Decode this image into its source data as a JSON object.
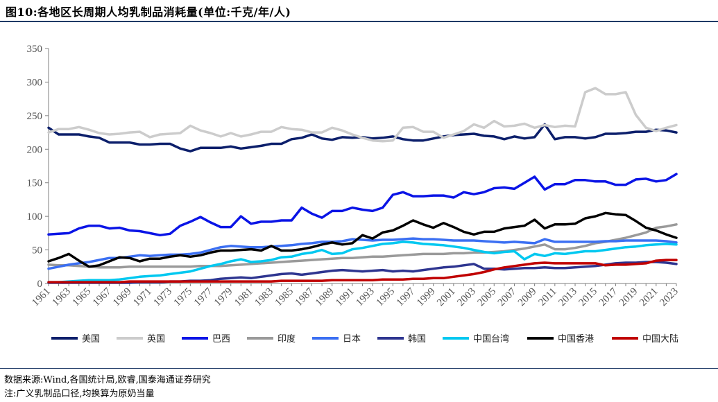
{
  "header": {
    "figure_title": "图10:各地区长周期人均乳制品消耗量(单位:千克/年/人)"
  },
  "footer": {
    "source": "数据来源:Wind,各国统计局,欧睿,国泰海通证券研究",
    "note": "注:广义乳制品口径,均换算为原奶当量"
  },
  "chart_data": {
    "type": "line",
    "x": [
      1961,
      1962,
      1963,
      1964,
      1965,
      1966,
      1967,
      1968,
      1969,
      1970,
      1971,
      1972,
      1973,
      1974,
      1975,
      1976,
      1977,
      1978,
      1979,
      1980,
      1981,
      1982,
      1983,
      1984,
      1985,
      1986,
      1987,
      1988,
      1989,
      1990,
      1991,
      1992,
      1993,
      1994,
      1995,
      1996,
      1997,
      1998,
      1999,
      2000,
      2001,
      2002,
      2003,
      2004,
      2005,
      2006,
      2007,
      2008,
      2009,
      2010,
      2011,
      2012,
      2013,
      2014,
      2015,
      2016,
      2017,
      2018,
      2019,
      2020,
      2021,
      2022,
      2023
    ],
    "x_tick_labels": [
      "1961",
      "1963",
      "1965",
      "1967",
      "1969",
      "1971",
      "1973",
      "1975",
      "1977",
      "1979",
      "1981",
      "1983",
      "1985",
      "1987",
      "1989",
      "1991",
      "1993",
      "1995",
      "1997",
      "1999",
      "2001",
      "2003",
      "2005",
      "2007",
      "2009",
      "2011",
      "2013",
      "2015",
      "2017",
      "2019",
      "2021",
      "2023"
    ],
    "y_ticks": [
      0,
      50,
      100,
      150,
      200,
      250,
      300,
      350
    ],
    "ylim": [
      0,
      350
    ],
    "grid": false,
    "legend_position": "bottom",
    "series": [
      {
        "name": "美国",
        "color": "#0c1f6b",
        "values": [
          232,
          222,
          222,
          222,
          219,
          217,
          210,
          210,
          210,
          207,
          207,
          208,
          208,
          201,
          197,
          202,
          202,
          202,
          204,
          201,
          203,
          205,
          208,
          208,
          215,
          217,
          222,
          216,
          214,
          218,
          217,
          218,
          216,
          217,
          219,
          215,
          213,
          213,
          216,
          219,
          221,
          222,
          223,
          220,
          219,
          215,
          219,
          216,
          218,
          237,
          215,
          218,
          218,
          216,
          218,
          223,
          223,
          224,
          226,
          226,
          229,
          228,
          225
        ]
      },
      {
        "name": "英国",
        "color": "#cccccc",
        "values": [
          225,
          230,
          230,
          233,
          229,
          224,
          222,
          223,
          225,
          226,
          218,
          222,
          223,
          224,
          235,
          228,
          224,
          219,
          224,
          219,
          222,
          226,
          226,
          233,
          230,
          229,
          225,
          225,
          232,
          228,
          222,
          217,
          213,
          212,
          213,
          232,
          233,
          226,
          226,
          217,
          222,
          227,
          237,
          232,
          242,
          234,
          235,
          238,
          232,
          236,
          233,
          235,
          234,
          285,
          291,
          282,
          282,
          285,
          251,
          232,
          227,
          232,
          236
        ]
      },
      {
        "name": "巴西",
        "color": "#0a14e6",
        "values": [
          73,
          74,
          75,
          82,
          86,
          86,
          82,
          83,
          79,
          78,
          75,
          72,
          74,
          86,
          92,
          99,
          91,
          84,
          84,
          100,
          89,
          92,
          92,
          94,
          94,
          113,
          104,
          98,
          108,
          108,
          113,
          110,
          108,
          113,
          132,
          136,
          130,
          130,
          131,
          131,
          128,
          136,
          133,
          136,
          142,
          143,
          141,
          150,
          159,
          140,
          148,
          148,
          154,
          154,
          152,
          152,
          147,
          147,
          155,
          156,
          152,
          154,
          163
        ]
      },
      {
        "name": "印度",
        "color": "#9a9a9a",
        "values": [
          28,
          27,
          27,
          26,
          25,
          24,
          24,
          24,
          25,
          25,
          25,
          25,
          25,
          25,
          25,
          26,
          26,
          26,
          27,
          28,
          29,
          30,
          31,
          32,
          33,
          34,
          35,
          36,
          37,
          38,
          38,
          39,
          40,
          40,
          41,
          42,
          43,
          44,
          44,
          44,
          45,
          45,
          46,
          46,
          47,
          48,
          50,
          52,
          55,
          58,
          51,
          51,
          53,
          56,
          60,
          62,
          65,
          68,
          72,
          76,
          83,
          85,
          88
        ]
      },
      {
        "name": "日本",
        "color": "#3b6ff2",
        "values": [
          22,
          25,
          28,
          30,
          32,
          35,
          38,
          38,
          40,
          42,
          41,
          42,
          43,
          43,
          44,
          46,
          50,
          54,
          56,
          55,
          54,
          54,
          55,
          56,
          57,
          59,
          60,
          62,
          62,
          63,
          66,
          65,
          64,
          65,
          65,
          66,
          67,
          66,
          66,
          65,
          64,
          64,
          64,
          63,
          62,
          61,
          62,
          61,
          60,
          66,
          62,
          62,
          62,
          62,
          62,
          63,
          63,
          64,
          64,
          64,
          64,
          63,
          61
        ]
      },
      {
        "name": "韩国",
        "color": "#2e3590",
        "values": [
          1,
          1,
          1,
          1,
          1,
          1,
          1,
          1,
          1,
          2,
          2,
          2,
          3,
          3,
          4,
          4,
          5,
          7,
          8,
          9,
          8,
          10,
          12,
          14,
          15,
          13,
          15,
          17,
          19,
          20,
          19,
          18,
          19,
          20,
          18,
          19,
          18,
          20,
          22,
          24,
          25,
          27,
          29,
          22,
          22,
          21,
          22,
          23,
          23,
          24,
          23,
          23,
          24,
          25,
          26,
          28,
          30,
          31,
          31,
          32,
          32,
          31,
          29
        ]
      },
      {
        "name": "中国台湾",
        "color": "#00c8f0",
        "values": [
          2,
          2,
          3,
          4,
          5,
          5,
          5,
          6,
          8,
          10,
          11,
          12,
          14,
          16,
          18,
          22,
          26,
          29,
          33,
          36,
          32,
          33,
          35,
          39,
          40,
          44,
          46,
          50,
          44,
          45,
          51,
          53,
          56,
          59,
          60,
          62,
          61,
          59,
          58,
          57,
          55,
          53,
          50,
          47,
          45,
          47,
          48,
          36,
          44,
          41,
          45,
          44,
          46,
          48,
          48,
          50,
          52,
          54,
          55,
          57,
          58,
          59,
          58
        ]
      },
      {
        "name": "中国香港",
        "color": "#000000",
        "values": [
          33,
          38,
          44,
          34,
          25,
          27,
          33,
          39,
          38,
          33,
          37,
          37,
          40,
          42,
          40,
          42,
          46,
          49,
          49,
          50,
          51,
          49,
          56,
          49,
          49,
          51,
          54,
          58,
          61,
          58,
          60,
          72,
          67,
          76,
          79,
          86,
          94,
          88,
          83,
          90,
          84,
          77,
          73,
          77,
          77,
          82,
          84,
          86,
          95,
          82,
          88,
          88,
          89,
          97,
          100,
          105,
          103,
          102,
          93,
          83,
          79,
          73,
          68
        ]
      },
      {
        "name": "中国大陆",
        "color": "#c00000",
        "values": [
          2,
          2,
          2,
          2,
          2,
          2,
          2,
          2,
          3,
          3,
          3,
          3,
          3,
          3,
          3,
          3,
          3,
          3,
          3,
          3,
          3,
          3,
          3,
          4,
          4,
          4,
          4,
          4,
          5,
          5,
          5,
          5,
          5,
          6,
          6,
          6,
          7,
          7,
          8,
          8,
          10,
          12,
          14,
          17,
          21,
          24,
          26,
          28,
          30,
          31,
          30,
          30,
          30,
          30,
          30,
          27,
          28,
          28,
          29,
          30,
          34,
          35,
          35
        ]
      }
    ]
  }
}
